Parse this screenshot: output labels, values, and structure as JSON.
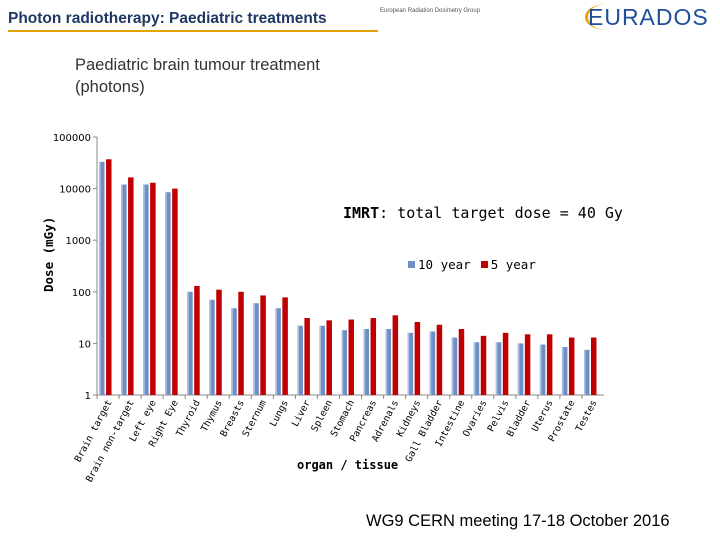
{
  "header": {
    "title": "Photon radiotherapy: Paediatric treatments",
    "group_name": "European Radiation Dosimetry Group",
    "logo_text": "EURADOS"
  },
  "footer": {
    "text": "WG9 CERN meeting 17-18 October 2016"
  },
  "colors": {
    "series_10_year": "#6f8fc4",
    "series_5_year": "#c00000",
    "title_blue": "#1f3864",
    "accent": "#e2a400"
  },
  "chart_data": {
    "type": "bar",
    "scale": "log",
    "title_lines": [
      "Paediatric brain tumour treatment",
      "(photons)"
    ],
    "annotation_bold": "IMRT",
    "annotation_rest": ": total target dose = 40 Gy",
    "xlabel": "organ / tissue",
    "ylabel": "Dose (mGy)",
    "ylim": [
      1,
      100000
    ],
    "yticks": [
      1,
      10,
      100,
      1000,
      10000,
      100000
    ],
    "ytick_labels": [
      "1",
      "10",
      "100",
      "1000",
      "10000",
      "100000"
    ],
    "categories": [
      "Brain target",
      "Brain non-target",
      "Left eye",
      "Right Eye",
      "Thyroid",
      "Thymus",
      "Breasts",
      "Sternum",
      "Lungs",
      "Liver",
      "Spleen",
      "Stomach",
      "Pancreas",
      "Adrenals",
      "Kidneys",
      "Gall Bladder",
      "Intestine",
      "Ovaries",
      "Pelvis",
      "Bladder",
      "Uterus",
      "Prostate",
      "Testes"
    ],
    "series": [
      {
        "name": "10 year",
        "values": [
          33000,
          12000,
          12000,
          8500,
          100,
          70,
          48,
          60,
          48,
          22,
          22,
          18,
          19,
          19,
          16,
          17,
          13,
          10.5,
          10.5,
          10,
          9.5,
          8.5,
          7.5
        ]
      },
      {
        "name": "5 year",
        "values": [
          37000,
          16500,
          13000,
          10000,
          130,
          110,
          100,
          85,
          78,
          31,
          28,
          29,
          31,
          35,
          26,
          23,
          19,
          14,
          16,
          15,
          15,
          13,
          13
        ]
      }
    ]
  }
}
